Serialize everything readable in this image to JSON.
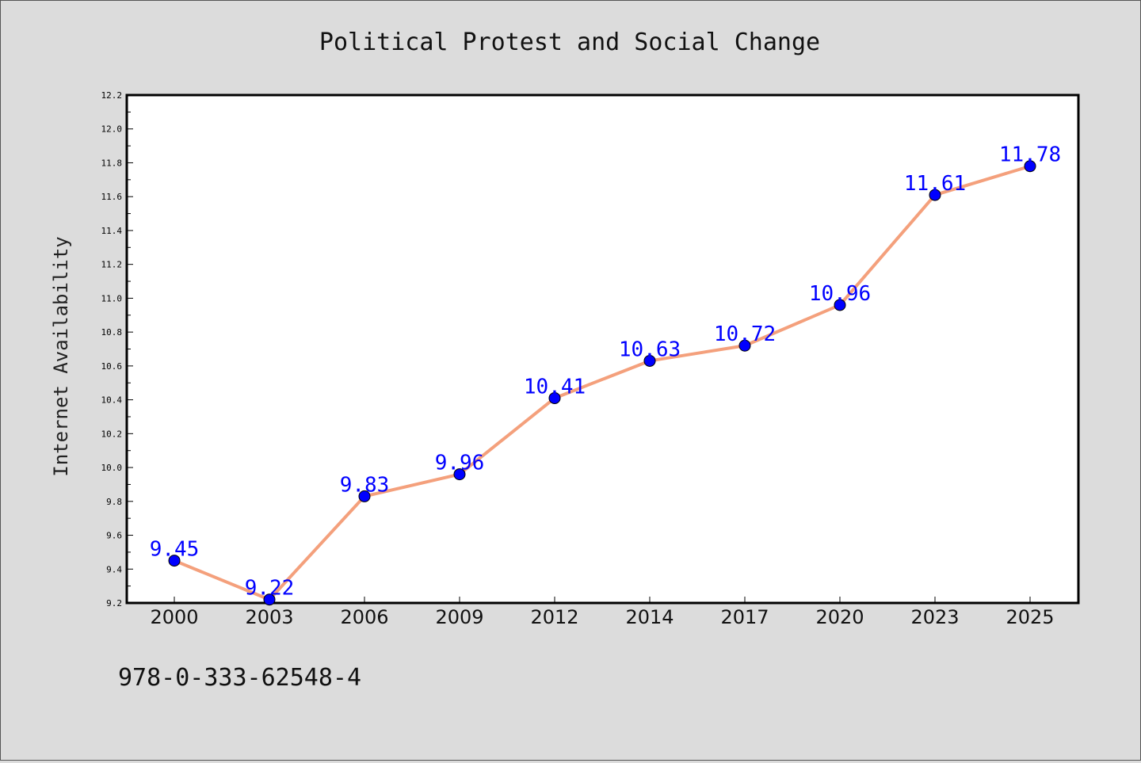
{
  "chart_data": {
    "type": "line",
    "title": "Political Protest and Social Change",
    "xlabel": "",
    "ylabel": "Internet Availability",
    "categories": [
      "2000",
      "2003",
      "2006",
      "2009",
      "2012",
      "2014",
      "2017",
      "2020",
      "2023",
      "2025"
    ],
    "series": [
      {
        "values": [
          9.45,
          9.22,
          9.83,
          9.96,
          10.41,
          10.63,
          10.72,
          10.96,
          11.61,
          11.78
        ],
        "line_color": "#f4a07c",
        "marker_color": "#0000ff"
      }
    ],
    "data_labels": [
      "9.45",
      "9.22",
      "9.83",
      "9.96",
      "10.41",
      "10.63",
      "10.72",
      "10.96",
      "11.61",
      "11.78"
    ],
    "ylim": [
      9.2,
      12.2
    ],
    "yticks": [
      "9.2",
      "9.4",
      "9.6",
      "9.8",
      "10.0",
      "10.2",
      "10.4",
      "10.6",
      "10.8",
      "11.0",
      "11.2",
      "11.4",
      "11.6",
      "11.8",
      "12.0",
      "12.2"
    ],
    "grid": false,
    "legend": "none"
  },
  "footer": {
    "isbn": "978-0-333-62548-4"
  },
  "colors": {
    "background": "#dcdcdc",
    "plot_background": "#ffffff",
    "label_color": "#0000ff"
  }
}
